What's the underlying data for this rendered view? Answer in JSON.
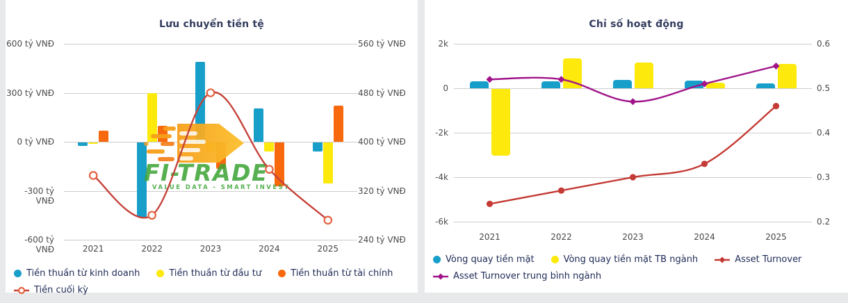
{
  "page": {
    "background": "#e8e9eb",
    "card_background": "#ffffff"
  },
  "watermark": {
    "brand": "FI-TRADE",
    "tagline": "VALUE DATA - SMART INVEST",
    "green": "#3EA437",
    "orange": "#F7A01B"
  },
  "chart_data": [
    {
      "type": "bar",
      "combo": "grouped bars + smooth line",
      "title": "Lưu chuyển tiền tệ",
      "categories": [
        "2021",
        "2022",
        "2023",
        "2024",
        "2025"
      ],
      "grid": true,
      "legend_position": "bottom-left",
      "y_left": {
        "unit": "tỷ VNĐ",
        "min": -600,
        "max": 600,
        "step": 300,
        "labels": [
          "600 tỷ VNĐ",
          "300 tỷ VNĐ",
          "0 tỷ VNĐ",
          "-300 tỷ VNĐ",
          "-600 tỷ VNĐ"
        ]
      },
      "y_right": {
        "unit": "tỷ VNĐ",
        "min": 240,
        "max": 560,
        "step": 80,
        "labels": [
          "560 tỷ VNĐ",
          "480 tỷ VNĐ",
          "400 tỷ VNĐ",
          "320 tỷ VNĐ",
          "240 tỷ VNĐ"
        ]
      },
      "series": [
        {
          "name": "Tiền thuần từ kinh doanh",
          "type": "bar",
          "axis": "left",
          "color": "#189fc9",
          "values": [
            -20,
            -460,
            490,
            205,
            -55
          ]
        },
        {
          "name": "Tiền thuần từ đầu tư",
          "type": "bar",
          "axis": "left",
          "color": "#fde90b",
          "values": [
            -10,
            300,
            -55,
            -55,
            -250
          ]
        },
        {
          "name": "Tiền thuần từ tài chính",
          "type": "bar",
          "axis": "left",
          "color": "#f8680d",
          "values": [
            70,
            100,
            -160,
            -270,
            220
          ]
        },
        {
          "name": "Tiền cuối kỳ",
          "type": "line",
          "axis": "right",
          "color": "#c5433b",
          "marker": "circle-hollow",
          "marker_color": "#e4603e",
          "values": [
            345,
            280,
            480,
            355,
            272
          ]
        }
      ]
    },
    {
      "type": "bar",
      "combo": "grouped bars + smooth lines",
      "title": "Chỉ số hoạt động",
      "categories": [
        "2021",
        "2022",
        "2023",
        "2024",
        "2025"
      ],
      "grid": true,
      "legend_position": "bottom-left",
      "y_left": {
        "unit": "k",
        "min": -6000,
        "max": 2000,
        "step": 2000,
        "labels": [
          "2k",
          "0",
          "-2k",
          "-4k",
          "-6k"
        ]
      },
      "y_right": {
        "unit": "",
        "min": 0.2,
        "max": 0.6,
        "step": 0.1,
        "labels": [
          "0.6",
          "0.5",
          "0.4",
          "0.3",
          "0.2"
        ]
      },
      "series": [
        {
          "name": "Vòng quay tiền mặt",
          "type": "bar",
          "axis": "left",
          "color": "#189fc9",
          "values": [
            300,
            320,
            370,
            340,
            210
          ]
        },
        {
          "name": "Vòng quay tiền mặt TB ngành",
          "type": "bar",
          "axis": "left",
          "color": "#fde90b",
          "values": [
            -3000,
            1330,
            1160,
            260,
            1090
          ]
        },
        {
          "name": "Asset Turnover",
          "type": "line",
          "axis": "right",
          "color": "#c43a34",
          "marker": "circle",
          "marker_color": "#c43a34",
          "values": [
            0.24,
            0.27,
            0.3,
            0.33,
            0.46
          ]
        },
        {
          "name": "Asset Turnover trung bình ngành",
          "type": "line",
          "axis": "right",
          "color": "#a0138a",
          "marker": "diamond",
          "marker_color": "#a0138a",
          "values": [
            0.52,
            0.52,
            0.47,
            0.51,
            0.55
          ]
        }
      ]
    }
  ]
}
